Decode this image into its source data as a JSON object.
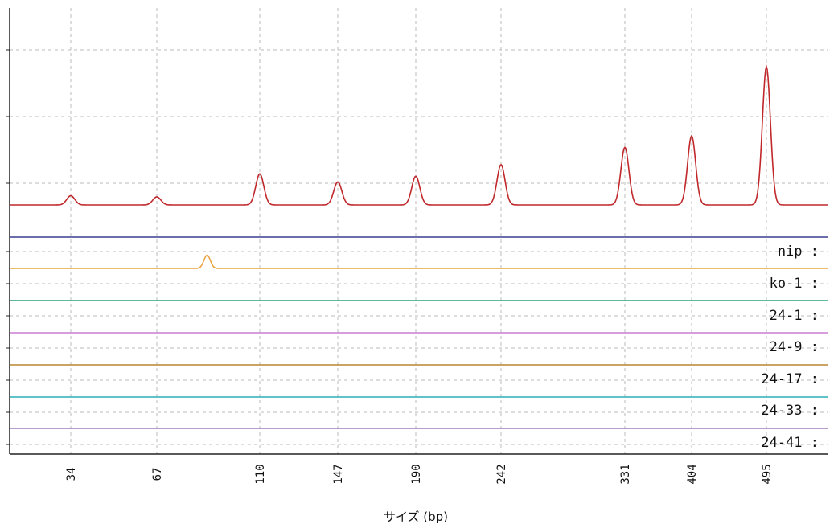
{
  "chart_data": {
    "type": "line",
    "xlabel": "サイズ (bp)",
    "ylabel": "",
    "size_standard": {
      "x": [
        34,
        67,
        110,
        147,
        190,
        242,
        331,
        404,
        495
      ],
      "peak_heights": [
        0.08,
        0.07,
        0.27,
        0.2,
        0.25,
        0.35,
        0.5,
        0.6,
        1.2
      ],
      "color": "#c0282b"
    },
    "ylim": [
      0,
      1.5
    ],
    "grid": true,
    "series": [
      {
        "name": "nip",
        "color": "#3a3f8f",
        "peaks": []
      },
      {
        "name": "ko-1",
        "color": "#e8a33c",
        "peaks": [
          {
            "x": 88,
            "height": 0.55
          }
        ]
      },
      {
        "name": "24-1",
        "color": "#2aa37c",
        "peaks": []
      },
      {
        "name": "24-9",
        "color": "#c97fd0",
        "peaks": []
      },
      {
        "name": "24-17",
        "color": "#b8862e",
        "peaks": []
      },
      {
        "name": "24-33",
        "color": "#2ab0b8",
        "peaks": []
      },
      {
        "name": "24-41",
        "color": "#a07fb8",
        "peaks": []
      }
    ],
    "label_suffix": ":"
  }
}
